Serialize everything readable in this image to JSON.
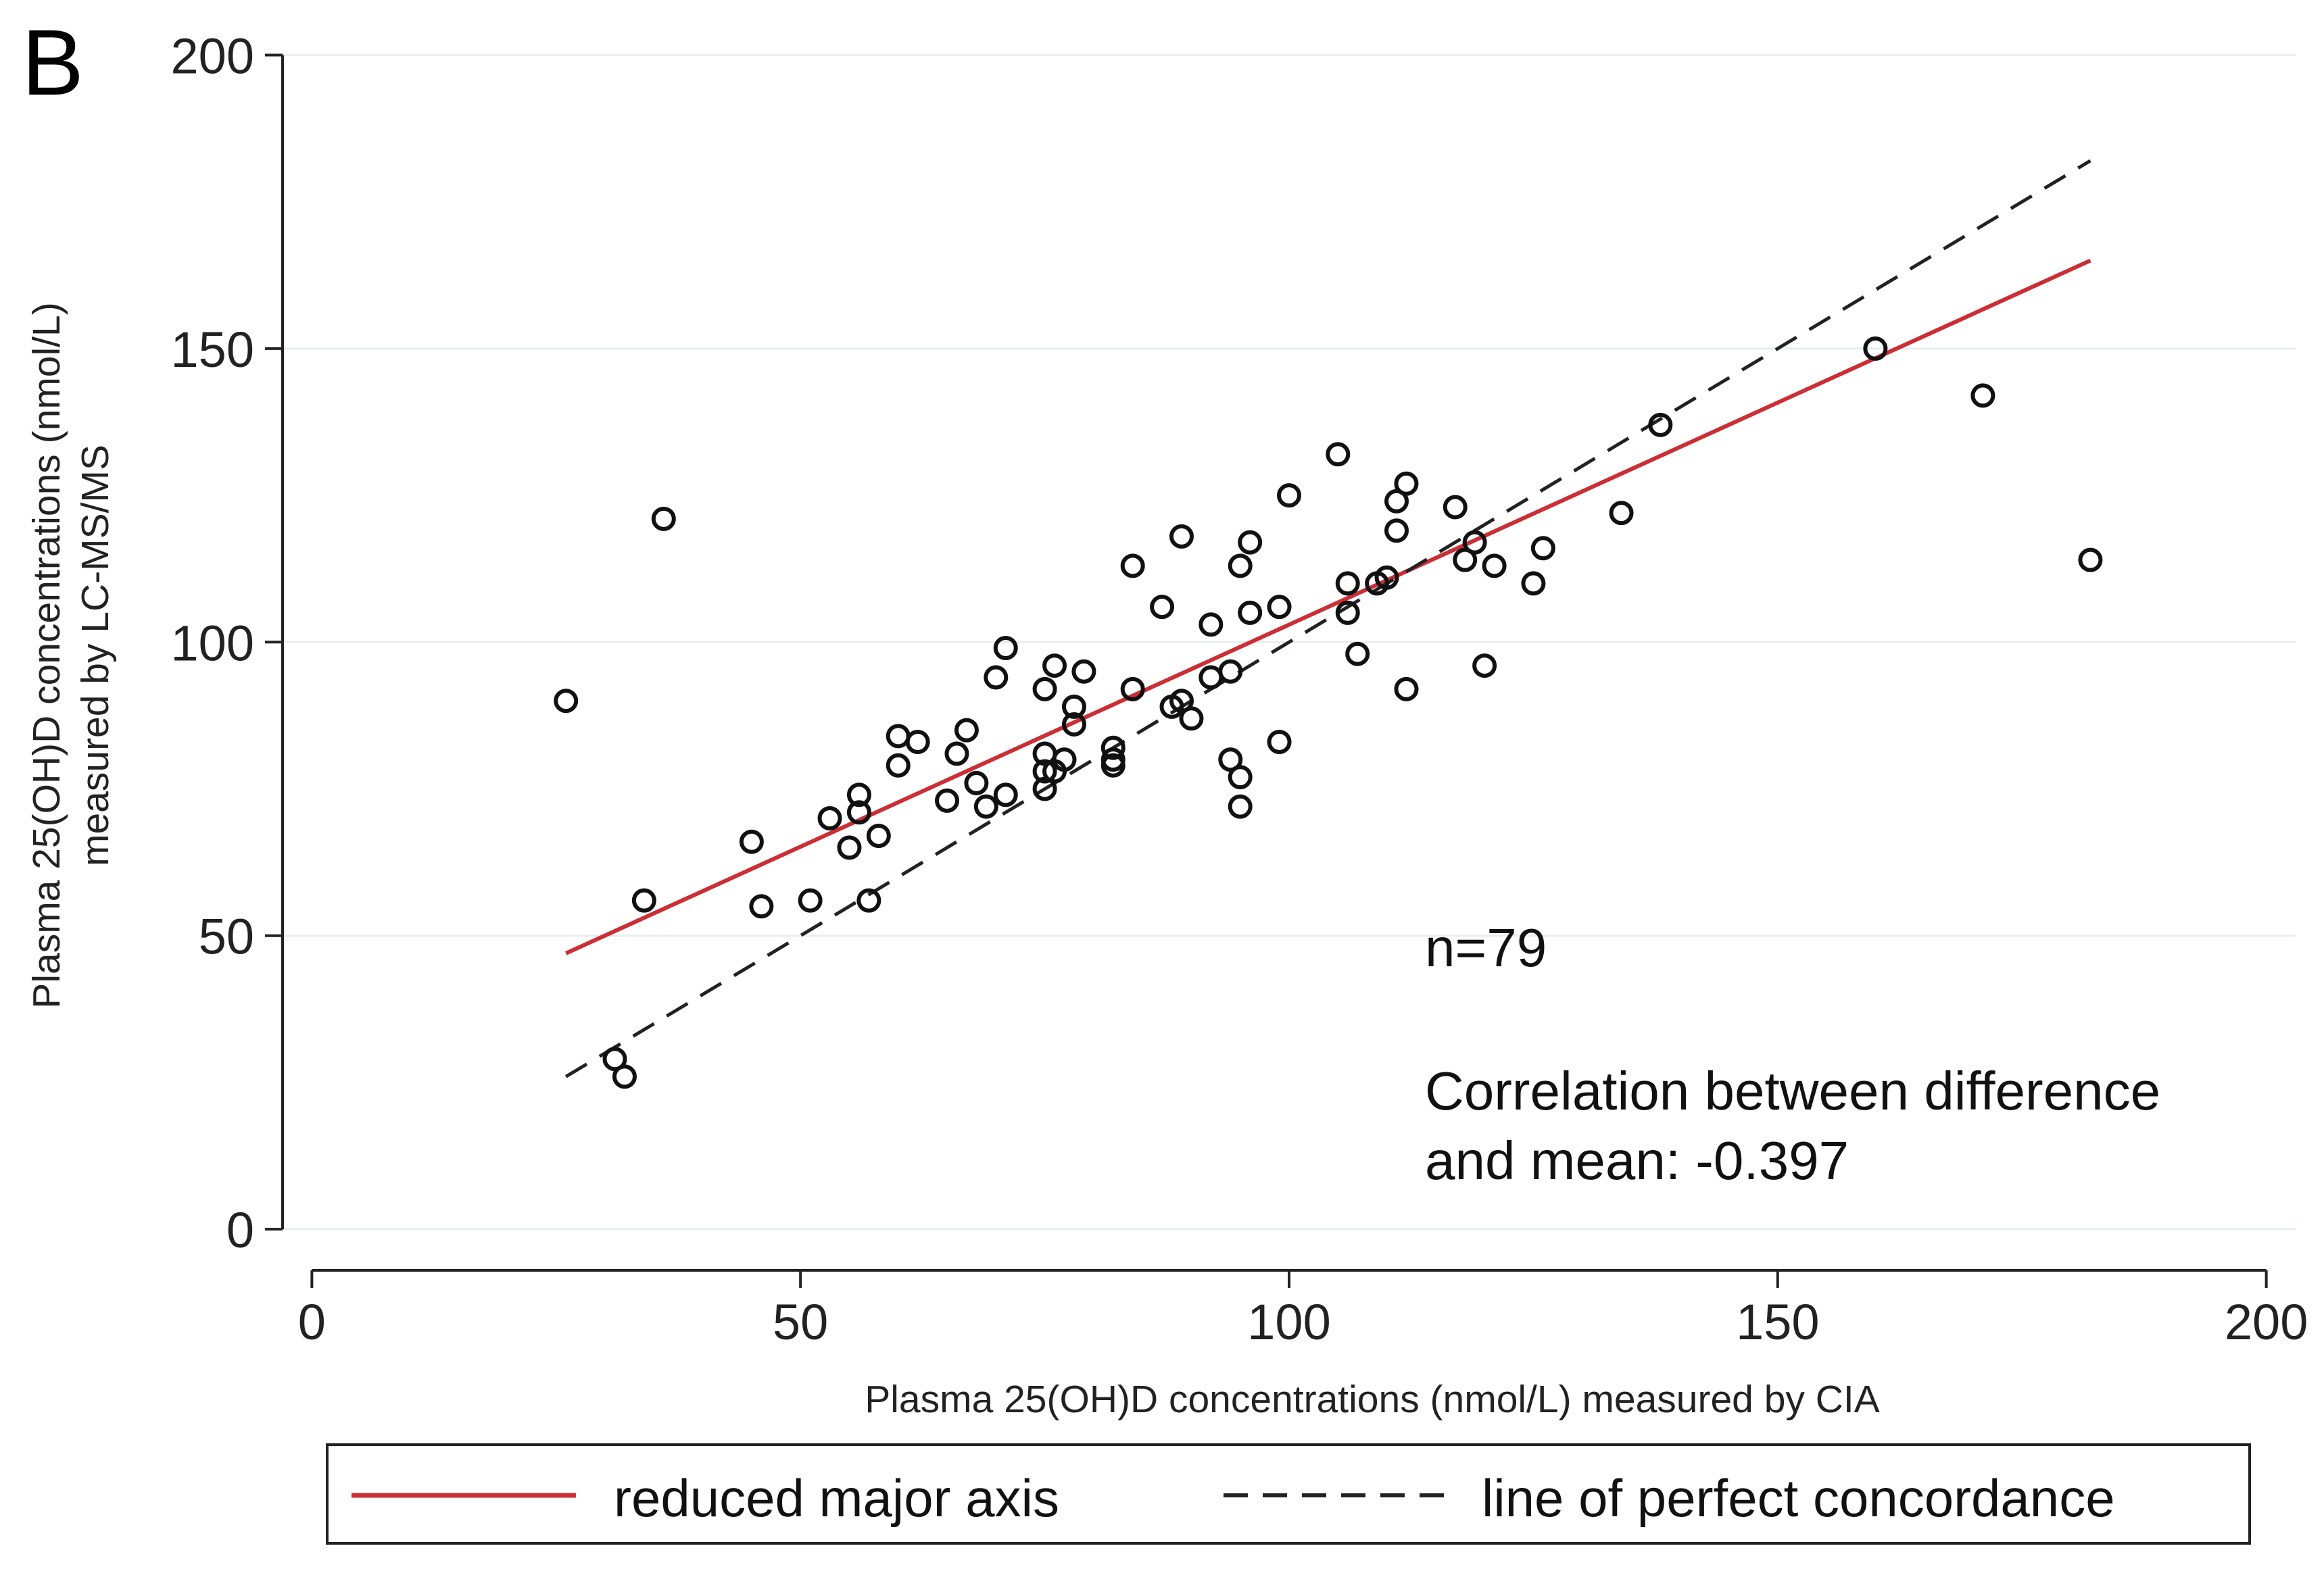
{
  "panel_label": "B",
  "chart_data": {
    "type": "scatter",
    "title": "",
    "xlabel": "Plasma 25(OH)D concentrations (nmol/L) measured by CIA",
    "ylabel_lines": [
      "Plasma 25(OH)D concentrations (nmol/L)",
      "measured by LC-MS/MS"
    ],
    "xlim": [
      -3,
      203
    ],
    "ylim": [
      -7,
      205
    ],
    "x_ticks": [
      0,
      50,
      100,
      150,
      200
    ],
    "y_ticks": [
      0,
      50,
      100,
      150,
      200
    ],
    "grid": "horizontal",
    "annotations": {
      "n": "n=79",
      "corr_line1": "Correlation between difference",
      "corr_line2": "and mean: -0.397"
    },
    "lines": [
      {
        "name": "reduced major axis",
        "color": "#cc2e35",
        "style": "solid",
        "x": [
          26,
          182
        ],
        "y": [
          47,
          165
        ]
      },
      {
        "name": "line of perfect concordance",
        "color": "#222222",
        "style": "dashed",
        "x": [
          26,
          182
        ],
        "y": [
          26,
          182
        ]
      }
    ],
    "legend": {
      "placement": "bottom",
      "entries": [
        "reduced major axis",
        "line of perfect concordance"
      ]
    },
    "points": [
      {
        "x": 26,
        "y": 90
      },
      {
        "x": 32,
        "y": 26
      },
      {
        "x": 34,
        "y": 56
      },
      {
        "x": 36,
        "y": 121
      },
      {
        "x": 45,
        "y": 66
      },
      {
        "x": 46,
        "y": 55
      },
      {
        "x": 51,
        "y": 56
      },
      {
        "x": 53,
        "y": 70
      },
      {
        "x": 55,
        "y": 65
      },
      {
        "x": 56,
        "y": 74
      },
      {
        "x": 56,
        "y": 71
      },
      {
        "x": 58,
        "y": 67
      },
      {
        "x": 60,
        "y": 84
      },
      {
        "x": 60,
        "y": 79
      },
      {
        "x": 62,
        "y": 83
      },
      {
        "x": 65,
        "y": 73
      },
      {
        "x": 66,
        "y": 81
      },
      {
        "x": 67,
        "y": 85
      },
      {
        "x": 68,
        "y": 76
      },
      {
        "x": 69,
        "y": 72
      },
      {
        "x": 70,
        "y": 94
      },
      {
        "x": 71,
        "y": 74
      },
      {
        "x": 71,
        "y": 99
      },
      {
        "x": 75,
        "y": 92
      },
      {
        "x": 75,
        "y": 81
      },
      {
        "x": 75,
        "y": 78
      },
      {
        "x": 75,
        "y": 75
      },
      {
        "x": 76,
        "y": 96
      },
      {
        "x": 76,
        "y": 78
      },
      {
        "x": 77,
        "y": 80
      },
      {
        "x": 78,
        "y": 89
      },
      {
        "x": 78,
        "y": 86
      },
      {
        "x": 79,
        "y": 95
      },
      {
        "x": 82,
        "y": 79
      },
      {
        "x": 82,
        "y": 80
      },
      {
        "x": 84,
        "y": 113
      },
      {
        "x": 84,
        "y": 92
      },
      {
        "x": 87,
        "y": 106
      },
      {
        "x": 88,
        "y": 89
      },
      {
        "x": 89,
        "y": 118
      },
      {
        "x": 89,
        "y": 90
      },
      {
        "x": 90,
        "y": 87
      },
      {
        "x": 92,
        "y": 103
      },
      {
        "x": 92,
        "y": 94
      },
      {
        "x": 94,
        "y": 95
      },
      {
        "x": 94,
        "y": 80
      },
      {
        "x": 95,
        "y": 113
      },
      {
        "x": 95,
        "y": 77
      },
      {
        "x": 95,
        "y": 72
      },
      {
        "x": 96,
        "y": 117
      },
      {
        "x": 96,
        "y": 105
      },
      {
        "x": 99,
        "y": 106
      },
      {
        "x": 99,
        "y": 83
      },
      {
        "x": 100,
        "y": 125
      },
      {
        "x": 105,
        "y": 132
      },
      {
        "x": 106,
        "y": 110
      },
      {
        "x": 106,
        "y": 105
      },
      {
        "x": 107,
        "y": 98
      },
      {
        "x": 109,
        "y": 110
      },
      {
        "x": 110,
        "y": 111
      },
      {
        "x": 111,
        "y": 119
      },
      {
        "x": 111,
        "y": 124
      },
      {
        "x": 112,
        "y": 127
      },
      {
        "x": 112,
        "y": 92
      },
      {
        "x": 117,
        "y": 123
      },
      {
        "x": 118,
        "y": 114
      },
      {
        "x": 119,
        "y": 117
      },
      {
        "x": 120,
        "y": 96
      },
      {
        "x": 121,
        "y": 113
      },
      {
        "x": 125,
        "y": 110
      },
      {
        "x": 126,
        "y": 116
      },
      {
        "x": 134,
        "y": 122
      },
      {
        "x": 138,
        "y": 137
      },
      {
        "x": 160,
        "y": 150
      },
      {
        "x": 171,
        "y": 142
      },
      {
        "x": 182,
        "y": 114
      },
      {
        "x": 31,
        "y": 29
      },
      {
        "x": 57,
        "y": 56
      },
      {
        "x": 82,
        "y": 82
      }
    ]
  }
}
